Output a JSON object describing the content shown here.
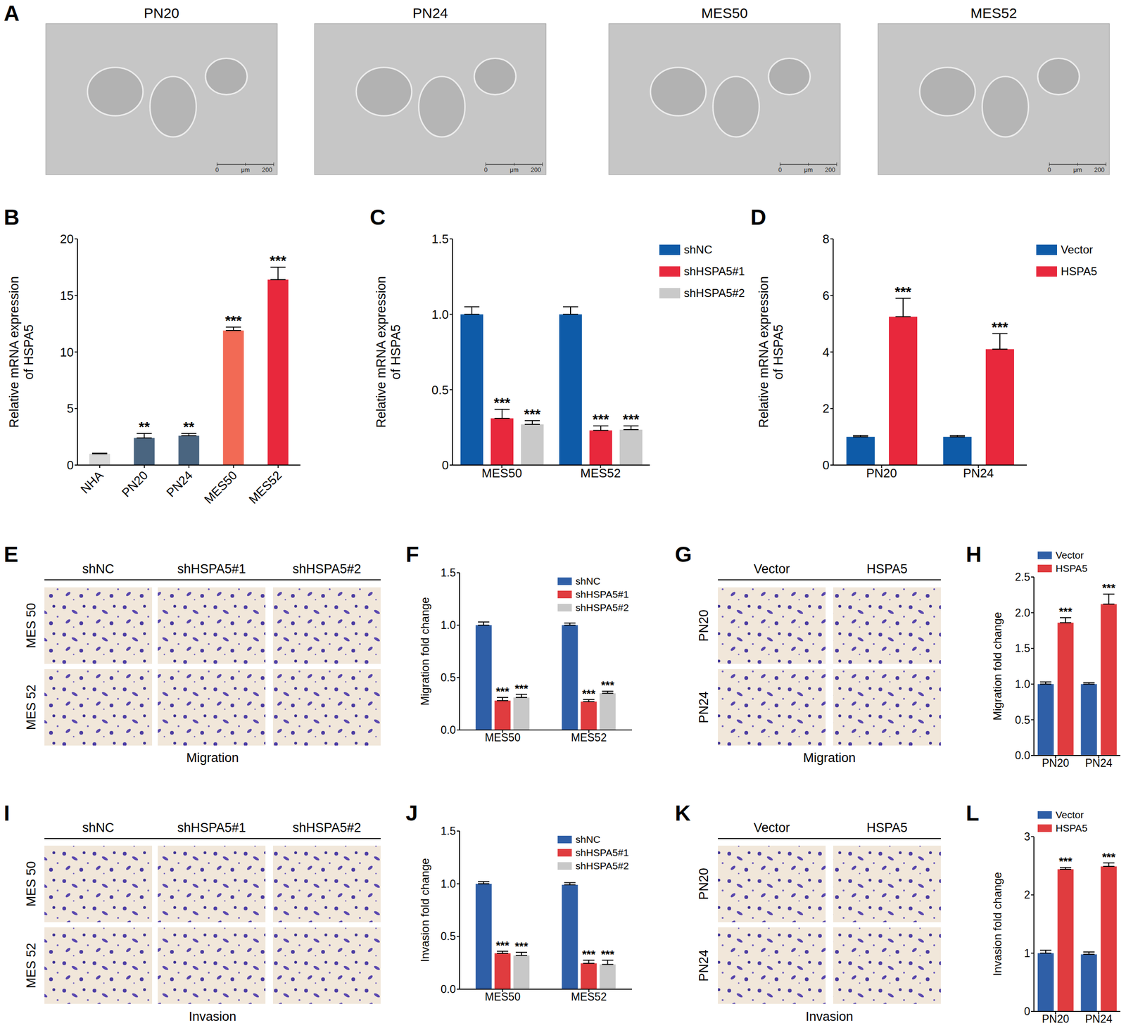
{
  "images": [
    {
      "panel": "A",
      "type": "micrograph",
      "titles": [
        "PN20",
        "PN24",
        "MES50",
        "MES52"
      ],
      "scale_bar": {
        "from": 0,
        "to": 200,
        "unit": "μm"
      }
    },
    {
      "panel": "E",
      "type": "transwell",
      "columns": [
        "shNC",
        "shHSPA5#1",
        "shHSPA5#2"
      ],
      "rows": [
        "MES 50",
        "MES 52"
      ],
      "caption": "Migration"
    },
    {
      "panel": "G",
      "type": "transwell",
      "columns": [
        "Vector",
        "HSPA5"
      ],
      "rows": [
        "PN20",
        "PN24"
      ],
      "caption": "Migration"
    },
    {
      "panel": "I",
      "type": "transwell",
      "columns": [
        "shNC",
        "shHSPA5#1",
        "shHSPA5#2"
      ],
      "rows": [
        "MES 50",
        "MES 52"
      ],
      "caption": "Invasion"
    },
    {
      "panel": "K",
      "type": "transwell",
      "columns": [
        "Vector",
        "HSPA5"
      ],
      "rows": [
        "PN20",
        "PN24"
      ],
      "caption": "Invasion"
    }
  ],
  "chart_data": [
    {
      "panel": "B",
      "type": "bar",
      "y_label": "Relative mRNA expression of HSPA5",
      "categories": [
        "NHA",
        "PN20",
        "PN24",
        "MES50",
        "MES52"
      ],
      "values": [
        1,
        2.4,
        2.6,
        11.9,
        16.4
      ],
      "errors": [
        0.05,
        0.4,
        0.2,
        0.3,
        1.1
      ],
      "significance": [
        null,
        "**",
        "**",
        "***",
        "***"
      ],
      "colors": [
        "#d9d9d9",
        "#4a6580",
        "#4a6580",
        "#f26a55",
        "#e8283c"
      ],
      "ylim": [
        0,
        20
      ],
      "yticks": [
        0,
        5,
        10,
        15,
        20
      ]
    },
    {
      "panel": "C",
      "type": "bar",
      "y_label": "Relative mRNA expression of HSPA5",
      "categories": [
        "MES50",
        "MES52"
      ],
      "legend": "right",
      "series": [
        {
          "name": "shNC",
          "color": "#0e5ba8",
          "values": [
            1,
            1
          ],
          "errors": [
            0.05,
            0.05
          ],
          "significance": [
            null,
            null
          ]
        },
        {
          "name": "shHSPA5#1",
          "color": "#e8283c",
          "values": [
            0.31,
            0.23
          ],
          "errors": [
            0.06,
            0.03
          ],
          "significance": [
            "***",
            "***"
          ]
        },
        {
          "name": "shHSPA5#2",
          "color": "#c9c9c9",
          "values": [
            0.27,
            0.235
          ],
          "errors": [
            0.025,
            0.025
          ],
          "significance": [
            "***",
            "***"
          ]
        }
      ],
      "ylim": [
        0,
        1.5
      ],
      "yticks": [
        0,
        0.5,
        {
          "value": 1,
          "label": "1.0"
        },
        1.5
      ]
    },
    {
      "panel": "D",
      "type": "bar",
      "y_label": "Relative mRNA expression of HSPA5",
      "categories": [
        "PN20",
        "PN24"
      ],
      "legend": "right",
      "series": [
        {
          "name": "Vector",
          "color": "#0e5ba8",
          "values": [
            1,
            1
          ],
          "errors": [
            0.05,
            0.05
          ],
          "significance": [
            null,
            null
          ]
        },
        {
          "name": "HSPA5",
          "color": "#e8283c",
          "values": [
            5.25,
            4.1
          ],
          "errors": [
            0.65,
            0.55
          ],
          "significance": [
            "***",
            "***"
          ]
        }
      ],
      "ylim": [
        0,
        8
      ],
      "yticks": [
        0,
        2,
        4,
        6,
        8
      ]
    },
    {
      "panel": "F",
      "type": "bar",
      "y_label": "Migration fold change",
      "categories": [
        "MES50",
        "MES52"
      ],
      "legend": "top-right",
      "series": [
        {
          "name": "shNC",
          "color": "#2f5fa7",
          "values": [
            1,
            1
          ],
          "errors": [
            0.03,
            0.02
          ],
          "significance": [
            null,
            null
          ]
        },
        {
          "name": "shHSPA5#1",
          "color": "#e03c3f",
          "values": [
            0.28,
            0.27
          ],
          "errors": [
            0.03,
            0.02
          ],
          "significance": [
            "***",
            "***"
          ]
        },
        {
          "name": "shHSPA5#2",
          "color": "#c8c8c8",
          "values": [
            0.31,
            0.35
          ],
          "errors": [
            0.03,
            0.02
          ],
          "significance": [
            "***",
            "***"
          ]
        }
      ],
      "ylim": [
        0,
        1.5
      ],
      "yticks": [
        {
          "value": 0,
          "label": "0.0"
        },
        0.5,
        {
          "value": 1,
          "label": "1.0"
        },
        1.5
      ]
    },
    {
      "panel": "H",
      "type": "bar",
      "y_label": "Migration fold change",
      "categories": [
        "PN20",
        "PN24"
      ],
      "legend": "top",
      "series": [
        {
          "name": "Vector",
          "color": "#2f5fa7",
          "values": [
            1,
            1
          ],
          "errors": [
            0.03,
            0.02
          ],
          "significance": [
            null,
            null
          ]
        },
        {
          "name": "HSPA5",
          "color": "#e03c3f",
          "values": [
            1.86,
            2.12
          ],
          "errors": [
            0.07,
            0.14
          ],
          "significance": [
            "***",
            "***"
          ]
        }
      ],
      "ylim": [
        0,
        2.5
      ],
      "yticks": [
        {
          "value": 0,
          "label": "0.0"
        },
        0.5,
        {
          "value": 1,
          "label": "1.0"
        },
        1.5,
        {
          "value": 2,
          "label": "2.0"
        },
        2.5
      ]
    },
    {
      "panel": "J",
      "type": "bar",
      "y_label": "Invasion fold change",
      "categories": [
        "MES50",
        "MES52"
      ],
      "legend": "top-right",
      "series": [
        {
          "name": "shNC",
          "color": "#2f5fa7",
          "values": [
            1,
            0.99
          ],
          "errors": [
            0.02,
            0.02
          ],
          "significance": [
            null,
            null
          ]
        },
        {
          "name": "shHSPA5#1",
          "color": "#e03c3f",
          "values": [
            0.34,
            0.245
          ],
          "errors": [
            0.02,
            0.03
          ],
          "significance": [
            "***",
            "***"
          ]
        },
        {
          "name": "shHSPA5#2",
          "color": "#c8c8c8",
          "values": [
            0.32,
            0.235
          ],
          "errors": [
            0.03,
            0.04
          ],
          "significance": [
            "***",
            "***"
          ]
        }
      ],
      "ylim": [
        0,
        1.5
      ],
      "yticks": [
        {
          "value": 0,
          "label": "0.0"
        },
        0.5,
        {
          "value": 1,
          "label": "1.0"
        },
        1.5
      ]
    },
    {
      "panel": "L",
      "type": "bar",
      "y_label": "Invasion fold change",
      "categories": [
        "PN20",
        "PN24"
      ],
      "legend": "top",
      "series": [
        {
          "name": "Vector",
          "color": "#2f5fa7",
          "values": [
            1,
            0.98
          ],
          "errors": [
            0.05,
            0.04
          ],
          "significance": [
            null,
            null
          ]
        },
        {
          "name": "HSPA5",
          "color": "#e03c3f",
          "values": [
            2.44,
            2.49
          ],
          "errors": [
            0.03,
            0.06
          ],
          "significance": [
            "***",
            "***"
          ]
        }
      ],
      "ylim": [
        0,
        3
      ],
      "yticks": [
        0,
        1,
        2,
        3
      ]
    }
  ]
}
